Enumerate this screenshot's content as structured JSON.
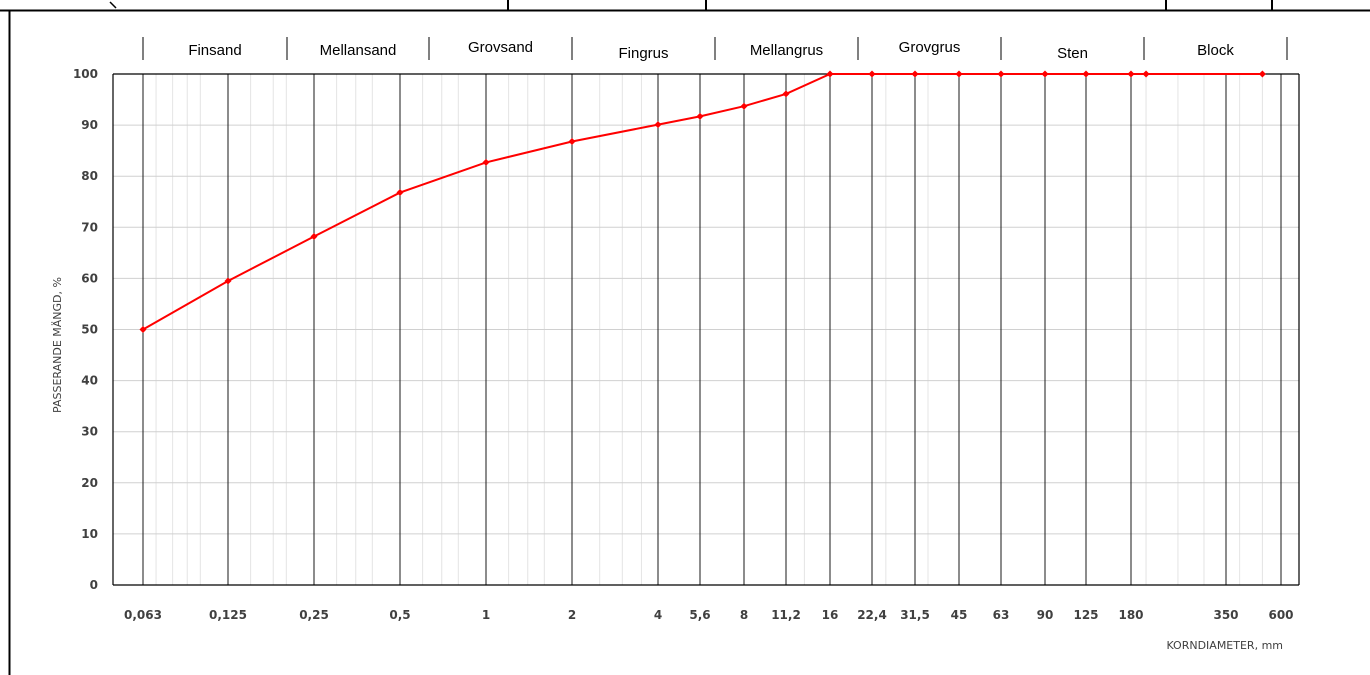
{
  "chart_data": {
    "type": "line",
    "xlabel": "KORNDIAMETER, mm",
    "ylabel": "PASSERANDE MÄNGD, %",
    "x_scale": "log",
    "ylim": [
      0,
      100
    ],
    "y_ticks": [
      "0",
      "10",
      "20",
      "30",
      "40",
      "50",
      "60",
      "70",
      "80",
      "90",
      "100"
    ],
    "x_ticks": [
      "0,063",
      "0,125",
      "0,25",
      "0,5",
      "1",
      "2",
      "4",
      "5,6",
      "8",
      "11,2",
      "16",
      "22,4",
      "31,5",
      "45",
      "63",
      "90",
      "125",
      "180",
      "350",
      "600"
    ],
    "fraction_bands": [
      "Finsand",
      "Mellansand",
      "Grovsand",
      "Fingrus",
      "Mellangrus",
      "Grovgrus",
      "Sten",
      "Block"
    ],
    "grid": true,
    "line_color": "#ff0000",
    "series": [
      {
        "x": [
          0.063,
          0.125,
          0.25,
          0.5,
          1,
          2,
          4,
          5.6,
          8,
          11.2,
          16,
          22.4,
          31.5,
          45,
          63,
          90,
          125,
          180,
          200,
          500
        ],
        "values": [
          50,
          59.5,
          68.2,
          76.8,
          82.7,
          86.8,
          90.1,
          91.7,
          93.7,
          96.1,
          100,
          100,
          100,
          100,
          100,
          100,
          100,
          100,
          100,
          100
        ]
      }
    ]
  }
}
